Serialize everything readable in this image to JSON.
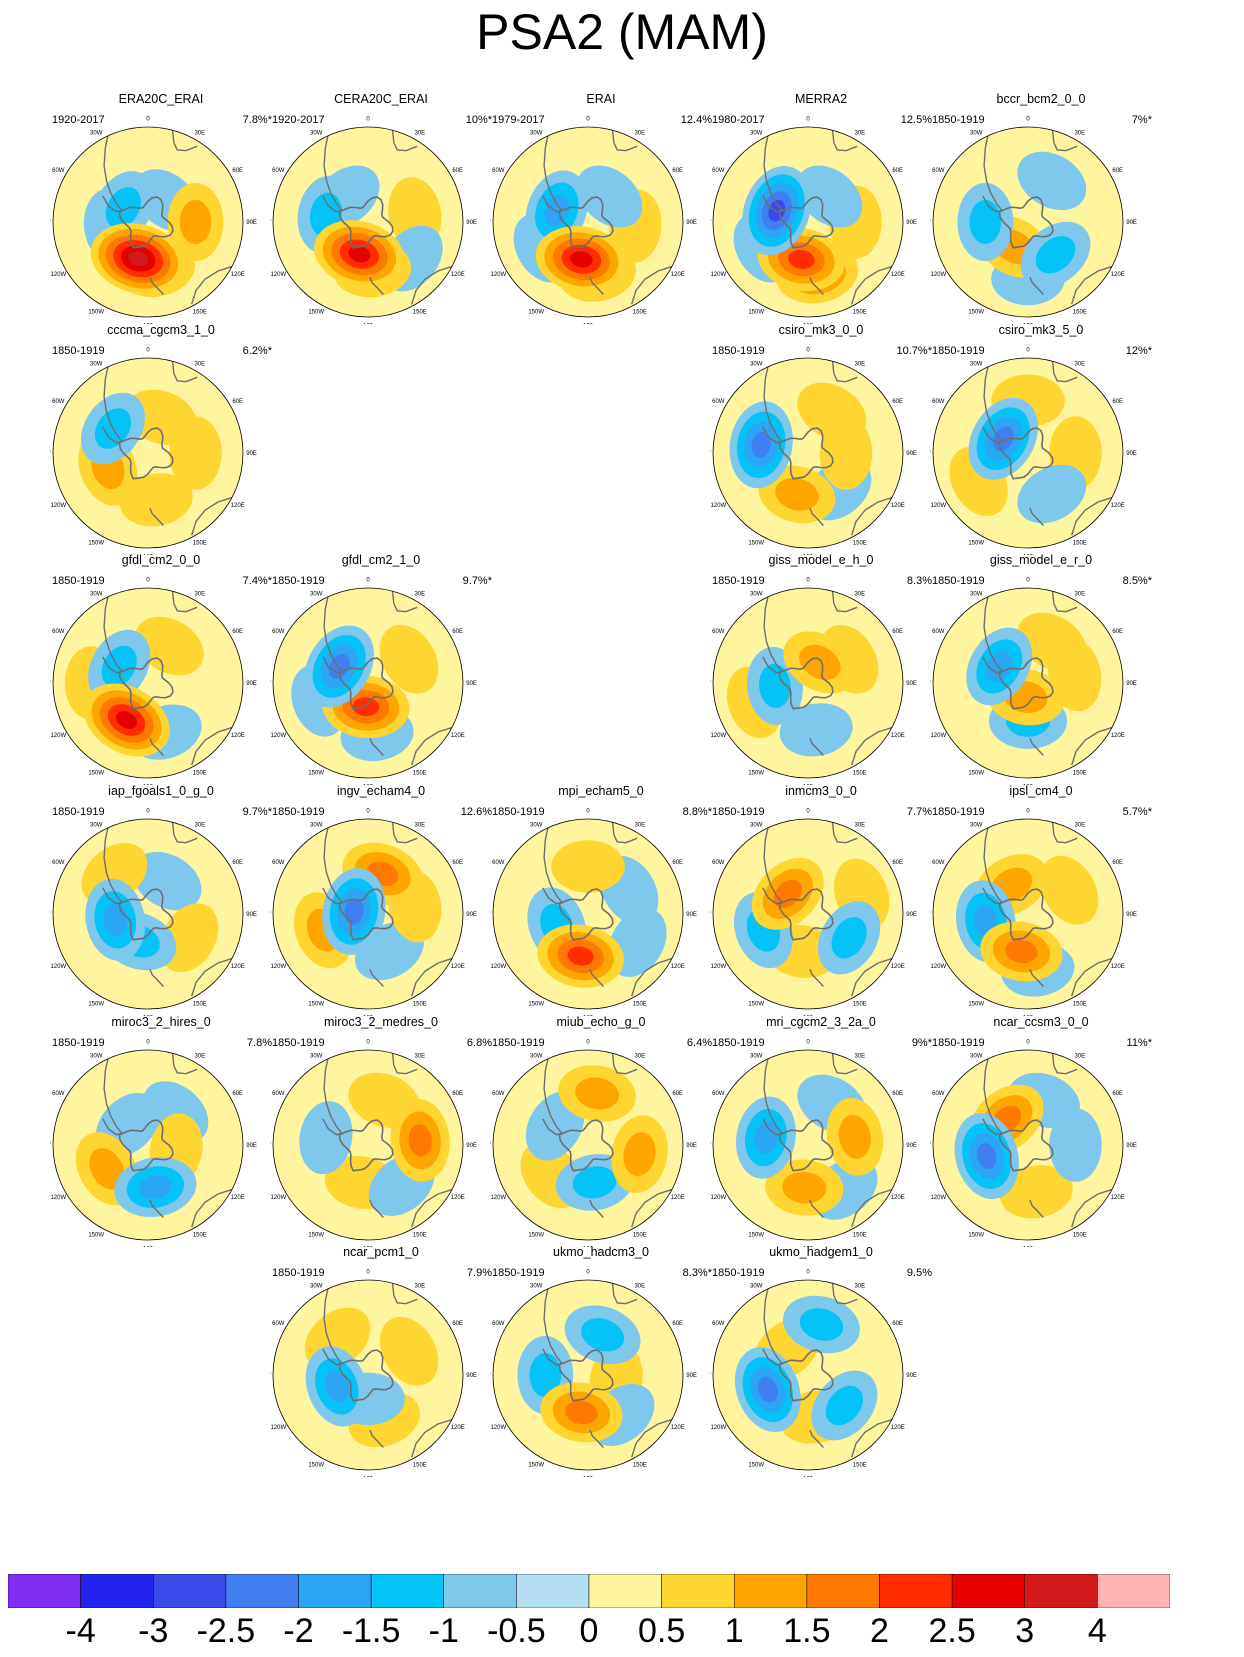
{
  "title": "PSA2 (MAM)",
  "colors": {
    "coast": "#6e6e6e",
    "rim": "#000000",
    "levels": [
      "#7f2ef5",
      "#2323f0",
      "#3a4ae8",
      "#3f7ff0",
      "#2aa6f5",
      "#05c3f7",
      "#7ec8ee",
      "#b4dff2",
      "#fff59e",
      "#ffd532",
      "#ffa500",
      "#ff7800",
      "#ff2d00",
      "#e60000",
      "#d21a1a",
      "#ffb3b3"
    ]
  },
  "lon_labels": {
    "top": "0",
    "deg30e": "30E",
    "deg60e": "60E",
    "deg90e": "90E",
    "deg120e": "120E",
    "deg150e": "150E",
    "bottom": "180",
    "deg150w": "150W",
    "deg120w": "120W",
    "deg90w": "90W",
    "deg60w": "60W",
    "deg30w": "30W"
  },
  "chart_data": {
    "type": "heatmap",
    "description_title": "PSA2 (MAM)",
    "colorbar": {
      "labels": [
        "-4",
        "-3",
        "-2.5",
        "-2",
        "-1.5",
        "-1",
        "-0.5",
        "0",
        "0.5",
        "1",
        "1.5",
        "2",
        "2.5",
        "3",
        "4"
      ]
    },
    "panels": [
      {
        "name": "ERA20C_ERAI",
        "years": "1920-2017",
        "pct": "7.8%*",
        "row": 0,
        "col": 0,
        "blobs": [
          [
            170,
            0.5,
            1
          ],
          [
            -165,
            0.4,
            3
          ],
          [
            90,
            0.5,
            1
          ],
          [
            -60,
            0.3,
            -1
          ],
          [
            -95,
            0.4,
            -0.5
          ],
          [
            40,
            0.3,
            -0.5
          ]
        ]
      },
      {
        "name": "CERA20C_ERAI",
        "years": "1920-2017",
        "pct": "10%*",
        "row": 0,
        "col": 1,
        "blobs": [
          [
            175,
            0.5,
            1
          ],
          [
            -165,
            0.35,
            2.5
          ],
          [
            80,
            0.5,
            0.5
          ],
          [
            -80,
            0.45,
            -1
          ],
          [
            -40,
            0.35,
            -0.5
          ],
          [
            130,
            0.6,
            -0.5
          ]
        ]
      },
      {
        "name": "ERAI",
        "years": "1979-2017",
        "pct": "12.4%",
        "row": 0,
        "col": 2,
        "blobs": [
          [
            170,
            0.55,
            1
          ],
          [
            -170,
            0.4,
            2.5
          ],
          [
            95,
            0.5,
            0.5
          ],
          [
            -70,
            0.35,
            -1.5
          ],
          [
            -120,
            0.55,
            -0.5
          ],
          [
            40,
            0.35,
            -0.5
          ]
        ]
      },
      {
        "name": "MERRA2",
        "years": "1980-2017",
        "pct": "12.5%",
        "row": 0,
        "col": 3,
        "blobs": [
          [
            170,
            0.55,
            1.5
          ],
          [
            -170,
            0.4,
            2
          ],
          [
            90,
            0.5,
            0.5
          ],
          [
            -70,
            0.35,
            -2.5
          ],
          [
            -120,
            0.55,
            -0.5
          ],
          [
            40,
            0.35,
            -0.5
          ]
        ]
      },
      {
        "name": "bccr_bcm2_0_0",
        "years": "1850-1919",
        "pct": "7%*",
        "row": 0,
        "col": 4,
        "blobs": [
          [
            -150,
            0.3,
            1
          ],
          [
            140,
            0.45,
            -1
          ],
          [
            -90,
            0.45,
            -1
          ],
          [
            30,
            0.5,
            -0.5
          ],
          [
            180,
            0.6,
            -0.5
          ]
        ]
      },
      {
        "name": "cccma_cgcm3_1_0",
        "years": "1850-1919",
        "pct": "6.2%*",
        "row": 1,
        "col": 0,
        "blobs": [
          [
            -110,
            0.45,
            1
          ],
          [
            90,
            0.5,
            0.5
          ],
          [
            170,
            0.5,
            0.5
          ],
          [
            -55,
            0.45,
            -1
          ],
          [
            20,
            0.4,
            0.5
          ]
        ]
      },
      {
        "name": "csiro_mk3_0_0",
        "years": "1850-1919",
        "pct": "10.7%*",
        "row": 1,
        "col": 3,
        "blobs": [
          [
            -80,
            0.5,
            -2
          ],
          [
            -165,
            0.45,
            1
          ],
          [
            140,
            0.5,
            -0.5
          ],
          [
            30,
            0.5,
            0.5
          ],
          [
            90,
            0.4,
            0.5
          ]
        ]
      },
      {
        "name": "csiro_mk3_5_0",
        "years": "1850-1919",
        "pct": "12%*",
        "row": 1,
        "col": 4,
        "blobs": [
          [
            -60,
            0.3,
            -2
          ],
          [
            0,
            0.55,
            0.5
          ],
          [
            90,
            0.5,
            0.5
          ],
          [
            -120,
            0.6,
            0.5
          ],
          [
            150,
            0.5,
            -0.5
          ]
        ]
      },
      {
        "name": "gfdl_cm2_0_0",
        "years": "1850-1919",
        "pct": "7.4%*",
        "row": 2,
        "col": 0,
        "blobs": [
          [
            -150,
            0.45,
            2.5
          ],
          [
            -60,
            0.35,
            -1
          ],
          [
            160,
            0.55,
            -0.5
          ],
          [
            30,
            0.45,
            0.5
          ],
          [
            -90,
            0.6,
            0.5
          ]
        ]
      },
      {
        "name": "gfdl_cm2_1_0",
        "years": "1850-1919",
        "pct": "9.7%*",
        "row": 2,
        "col": 1,
        "blobs": [
          [
            -175,
            0.25,
            2
          ],
          [
            -60,
            0.35,
            -2
          ],
          [
            170,
            0.55,
            -0.5
          ],
          [
            60,
            0.5,
            0.5
          ],
          [
            -110,
            0.55,
            -0.5
          ]
        ]
      },
      {
        "name": "giss_model_e_h_0",
        "years": "1850-1919",
        "pct": "8.3%",
        "row": 2,
        "col": 3,
        "blobs": [
          [
            -95,
            0.35,
            -1
          ],
          [
            -110,
            0.6,
            0.5
          ],
          [
            30,
            0.25,
            1
          ],
          [
            170,
            0.5,
            -0.5
          ],
          [
            60,
            0.5,
            0.5
          ]
        ]
      },
      {
        "name": "giss_model_e_r_0",
        "years": "1850-1919",
        "pct": "8.5%*",
        "row": 2,
        "col": 4,
        "blobs": [
          [
            -60,
            0.35,
            -1.5
          ],
          [
            180,
            0.4,
            -1
          ],
          [
            -170,
            0.15,
            1
          ],
          [
            80,
            0.5,
            0.5
          ],
          [
            30,
            0.5,
            0.5
          ]
        ]
      },
      {
        "name": "iap_fgoals1_0_g_0",
        "years": "1850-1919",
        "pct": "9.7%*",
        "row": 3,
        "col": 0,
        "blobs": [
          [
            -100,
            0.35,
            -1.5
          ],
          [
            -160,
            0.3,
            -1
          ],
          [
            30,
            0.4,
            -0.5
          ],
          [
            120,
            0.5,
            0.5
          ],
          [
            -40,
            0.55,
            0.5
          ]
        ]
      },
      {
        "name": "ingv_echam4_0",
        "years": "1850-1919",
        "pct": "12.6%",
        "row": 3,
        "col": 1,
        "blobs": [
          [
            -80,
            0.15,
            -2
          ],
          [
            -110,
            0.5,
            1
          ],
          [
            20,
            0.45,
            1.5
          ],
          [
            150,
            0.45,
            -0.5
          ],
          [
            80,
            0.5,
            0.5
          ]
        ]
      },
      {
        "name": "mpi_echam5_0",
        "years": "1850-1919",
        "pct": "8.8%*",
        "row": 3,
        "col": 2,
        "blobs": [
          [
            -170,
            0.45,
            2
          ],
          [
            -110,
            0.35,
            -1
          ],
          [
            60,
            0.5,
            -0.5
          ],
          [
            0,
            0.5,
            0.5
          ],
          [
            120,
            0.6,
            -0.5
          ]
        ]
      },
      {
        "name": "inmcm3_0_0",
        "years": "1850-1919",
        "pct": "7.7%",
        "row": 3,
        "col": 3,
        "blobs": [
          [
            -45,
            0.3,
            1.5
          ],
          [
            -110,
            0.5,
            -1
          ],
          [
            120,
            0.5,
            -1
          ],
          [
            70,
            0.6,
            0.5
          ],
          [
            -170,
            0.4,
            0.5
          ]
        ]
      },
      {
        "name": "ipsl_cm4_0",
        "years": "1850-1919",
        "pct": "5.7%*",
        "row": 3,
        "col": 4,
        "blobs": [
          [
            -100,
            0.45,
            -1.5
          ],
          [
            -170,
            0.4,
            1.5
          ],
          [
            -30,
            0.35,
            1
          ],
          [
            60,
            0.5,
            0.5
          ],
          [
            170,
            0.6,
            -0.5
          ]
        ]
      },
      {
        "name": "miroc3_2_hires_0",
        "years": "1850-1919",
        "pct": "7.8%",
        "row": 4,
        "col": 0,
        "blobs": [
          [
            170,
            0.45,
            -1.5
          ],
          [
            -120,
            0.5,
            1
          ],
          [
            40,
            0.45,
            -0.5
          ],
          [
            100,
            0.3,
            0.5
          ],
          [
            -45,
            0.3,
            -0.5
          ]
        ]
      },
      {
        "name": "miroc3_2_medres_0",
        "years": "1850-1919",
        "pct": "6.8%",
        "row": 4,
        "col": 1,
        "blobs": [
          [
            85,
            0.55,
            1.5
          ],
          [
            -170,
            0.4,
            0.5
          ],
          [
            140,
            0.55,
            -0.5
          ],
          [
            -80,
            0.45,
            -0.5
          ],
          [
            20,
            0.5,
            0.5
          ]
        ]
      },
      {
        "name": "miub_echo_g_0",
        "years": "1850-1919",
        "pct": "6.4%",
        "row": 4,
        "col": 2,
        "blobs": [
          [
            10,
            0.55,
            1
          ],
          [
            170,
            0.4,
            -1
          ],
          [
            100,
            0.55,
            1
          ],
          [
            -130,
            0.5,
            0.5
          ],
          [
            -60,
            0.4,
            -0.5
          ]
        ]
      },
      {
        "name": "mri_cgcm2_3_2a_0",
        "years": "1850-1919",
        "pct": "9%*",
        "row": 4,
        "col": 3,
        "blobs": [
          [
            -80,
            0.45,
            -1.5
          ],
          [
            -175,
            0.45,
            1
          ],
          [
            80,
            0.5,
            1
          ],
          [
            30,
            0.5,
            -0.5
          ],
          [
            140,
            0.6,
            -0.5
          ]
        ]
      },
      {
        "name": "ncar_ccsm3_0_0",
        "years": "1850-1919",
        "pct": "11%*",
        "row": 4,
        "col": 4,
        "blobs": [
          [
            -105,
            0.45,
            -2
          ],
          [
            -40,
            0.35,
            1.5
          ],
          [
            20,
            0.5,
            -0.5
          ],
          [
            170,
            0.5,
            0.5
          ],
          [
            90,
            0.5,
            -0.5
          ]
        ]
      },
      {
        "name": "ncar_pcm1_0",
        "years": "1850-1919",
        "pct": "7.9%",
        "row": 5,
        "col": 1,
        "blobs": [
          [
            -110,
            0.35,
            -1.5
          ],
          [
            -40,
            0.5,
            0.5
          ],
          [
            60,
            0.5,
            0.5
          ],
          [
            160,
            0.5,
            0.5
          ],
          [
            180,
            0.25,
            -0.5
          ]
        ]
      },
      {
        "name": "ukmo_hadcm3_0",
        "years": "1850-1919",
        "pct": "8.3%*",
        "row": 5,
        "col": 2,
        "blobs": [
          [
            -170,
            0.4,
            1.5
          ],
          [
            -90,
            0.45,
            -1
          ],
          [
            20,
            0.45,
            -1
          ],
          [
            100,
            0.3,
            0.5
          ],
          [
            140,
            0.55,
            -0.5
          ]
        ]
      },
      {
        "name": "ukmo_hadgem1_0",
        "years": "1850-1919",
        "pct": "9.5%",
        "row": 5,
        "col": 3,
        "blobs": [
          [
            -110,
            0.45,
            -2
          ],
          [
            15,
            0.55,
            -1
          ],
          [
            130,
            0.5,
            -1
          ],
          [
            -40,
            0.35,
            0.5
          ],
          [
            170,
            0.45,
            0.5
          ]
        ]
      }
    ]
  }
}
